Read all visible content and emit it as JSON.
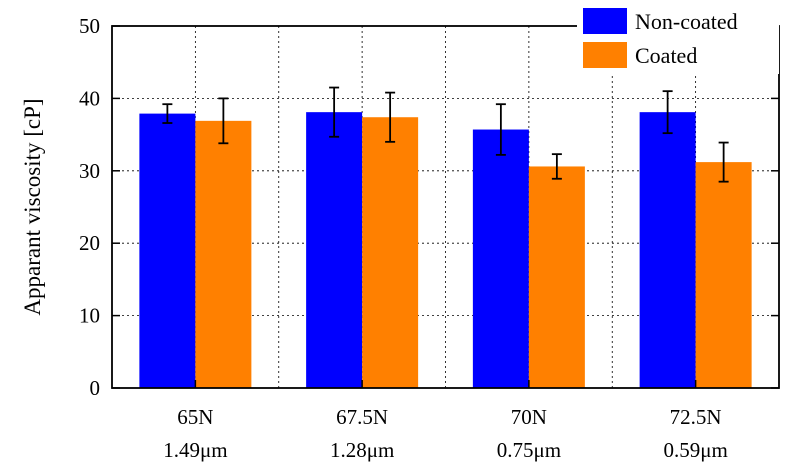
{
  "chart_data": {
    "type": "bar",
    "title": "",
    "xlabel": "",
    "ylabel": "Apparant viscosity [cP]",
    "ylim": [
      0,
      50
    ],
    "yticks": [
      0,
      10,
      20,
      30,
      40,
      50
    ],
    "grid": true,
    "legend_position": "top-right",
    "categories": [
      {
        "line1": "65N",
        "line2": "1.49μm"
      },
      {
        "line1": "67.5N",
        "line2": "1.28μm"
      },
      {
        "line1": "70N",
        "line2": "0.75μm"
      },
      {
        "line1": "72.5N",
        "line2": "0.59μm"
      }
    ],
    "series": [
      {
        "name": "Non-coated",
        "color": "#0000ff",
        "values": [
          37.9,
          38.1,
          35.7,
          38.1
        ],
        "errors": [
          1.3,
          3.4,
          3.5,
          2.9
        ]
      },
      {
        "name": "Coated",
        "color": "#ff8000",
        "values": [
          36.9,
          37.4,
          30.6,
          31.2
        ],
        "errors": [
          3.1,
          3.4,
          1.7,
          2.7
        ]
      }
    ]
  }
}
